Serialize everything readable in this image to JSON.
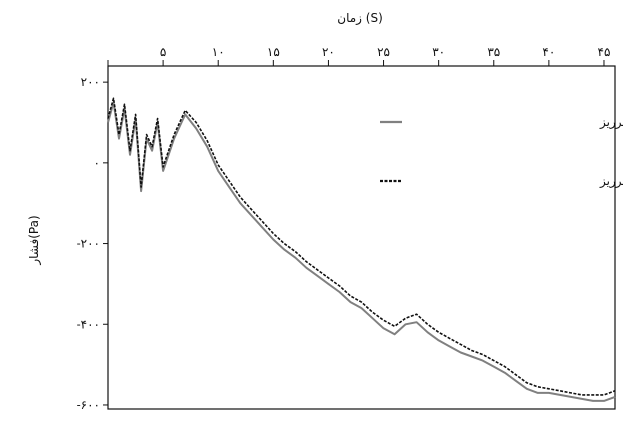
{
  "chart_data": {
    "type": "line",
    "xlabel": "زمان (S)",
    "ylabel": "فشار(Pa)",
    "xlim": [
      0,
      46
    ],
    "ylim": [
      -610,
      240
    ],
    "x_ticks": [
      0,
      5,
      10,
      15,
      20,
      25,
      30,
      35,
      40,
      45
    ],
    "x_tick_labels": [
      "",
      "۵",
      "۱۰",
      "۱۵",
      "۲۰",
      "۲۵",
      "۳۰",
      "۳۵",
      "۴۰",
      "۴۵"
    ],
    "y_ticks": [
      200,
      0,
      -200,
      -400,
      -600
    ],
    "y_tick_labels": [
      "۲۰۰",
      "۰",
      "-۲۰۰",
      "-۴۰۰",
      "-۶۰۰"
    ],
    "legend_position": "top-right",
    "series": [
      {
        "name": "فشار در نقطه میانی تاج سرریز",
        "color": "#808080",
        "style": "solid",
        "x": [
          0,
          0.5,
          1,
          1.5,
          2,
          2.5,
          3,
          3.5,
          4,
          4.5,
          5,
          5.5,
          6,
          7,
          8,
          9,
          10,
          11,
          12,
          13,
          14,
          15,
          16,
          17,
          18,
          19,
          20,
          21,
          22,
          23,
          24,
          25,
          26,
          27,
          28,
          29,
          30,
          31,
          32,
          33,
          34,
          35,
          36,
          37,
          38,
          39,
          40,
          41,
          42,
          43,
          44,
          45,
          46
        ],
        "y": [
          100,
          150,
          60,
          135,
          20,
          110,
          -70,
          60,
          30,
          100,
          -20,
          20,
          60,
          120,
          85,
          40,
          -20,
          -60,
          -100,
          -130,
          -160,
          -190,
          -215,
          -235,
          -260,
          -280,
          -300,
          -320,
          -345,
          -360,
          -385,
          -410,
          -425,
          -400,
          -395,
          -420,
          -440,
          -455,
          -470,
          -480,
          -490,
          -505,
          -520,
          -540,
          -560,
          -570,
          -570,
          -575,
          -580,
          -585,
          -590,
          -590,
          -580
        ]
      },
      {
        "name": "فشار در نقطه کناری تاج سرریز",
        "color": "#111111",
        "style": "dashed",
        "x": [
          0,
          0.5,
          1,
          1.5,
          2,
          2.5,
          3,
          3.5,
          4,
          4.5,
          5,
          5.5,
          6,
          7,
          8,
          9,
          10,
          11,
          12,
          13,
          14,
          15,
          16,
          17,
          18,
          19,
          20,
          21,
          22,
          23,
          24,
          25,
          26,
          27,
          28,
          29,
          30,
          31,
          32,
          33,
          34,
          35,
          36,
          37,
          38,
          39,
          40,
          41,
          42,
          43,
          44,
          45,
          46
        ],
        "y": [
          110,
          160,
          70,
          145,
          30,
          120,
          -60,
          70,
          40,
          110,
          -10,
          30,
          70,
          130,
          100,
          55,
          -5,
          -45,
          -85,
          -115,
          -145,
          -175,
          -200,
          -220,
          -245,
          -265,
          -285,
          -305,
          -330,
          -345,
          -370,
          -390,
          -405,
          -385,
          -375,
          -400,
          -420,
          -435,
          -450,
          -465,
          -475,
          -490,
          -505,
          -525,
          -545,
          -555,
          -560,
          -565,
          -570,
          -575,
          -575,
          -575,
          -565
        ]
      }
    ]
  }
}
